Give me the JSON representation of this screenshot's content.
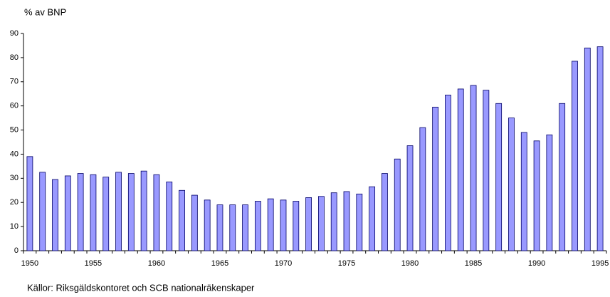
{
  "chart_data": {
    "type": "bar",
    "title": "% av BNP",
    "note": "Källor: Riksgäldskontoret och SCB nationalräkenskaper",
    "categories": [
      "1950",
      null,
      null,
      null,
      null,
      "1955",
      null,
      null,
      null,
      null,
      "1960",
      null,
      null,
      null,
      null,
      "1965",
      null,
      null,
      null,
      null,
      "1970",
      null,
      null,
      null,
      null,
      "1975",
      null,
      null,
      null,
      null,
      "1980",
      null,
      null,
      null,
      null,
      "1985",
      null,
      null,
      null,
      null,
      "1990",
      null,
      null,
      null,
      null,
      "1995"
    ],
    "values": [
      39,
      32.5,
      29.5,
      31,
      32,
      31.5,
      30.5,
      32.5,
      32,
      33,
      31.5,
      28.5,
      25,
      23,
      21,
      19,
      19,
      19,
      20.5,
      21.5,
      21,
      20.5,
      22,
      22.5,
      24,
      24.5,
      23.5,
      26.5,
      32,
      38,
      43.5,
      51,
      59.5,
      64.5,
      67,
      68.5,
      66.5,
      61,
      55,
      49,
      45.5,
      48,
      61,
      78.5,
      84,
      84.5
    ],
    "color": "#9999ff",
    "ylim": [
      0,
      90
    ],
    "yticks": [
      0,
      10,
      20,
      30,
      40,
      50,
      60,
      70,
      80,
      90
    ],
    "grid": false
  }
}
